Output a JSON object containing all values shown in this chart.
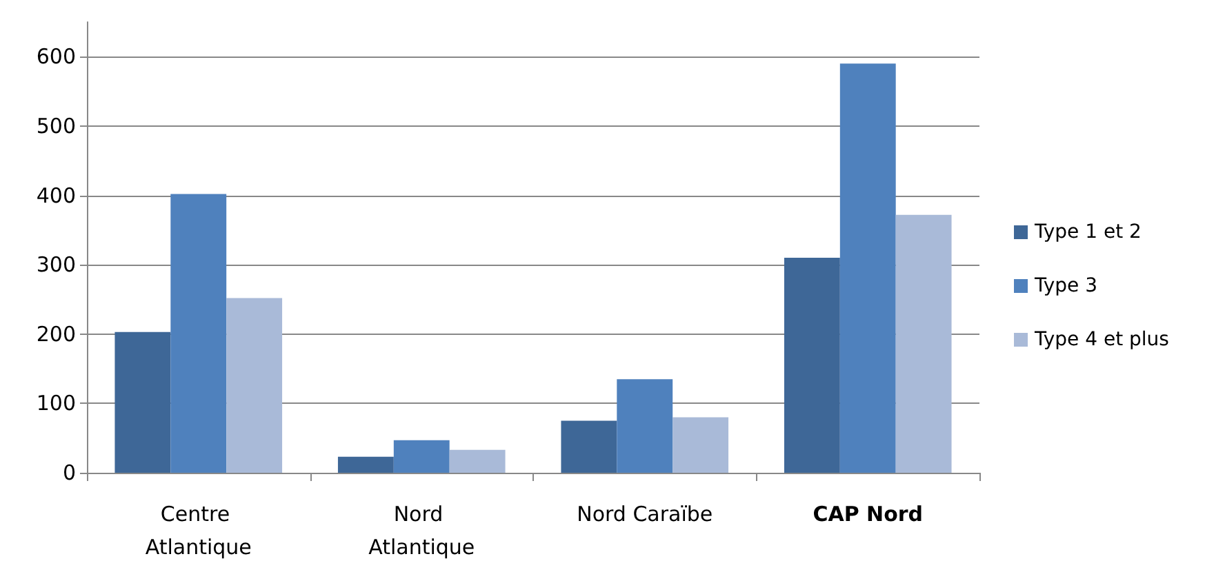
{
  "chart_data": {
    "type": "bar",
    "categories": [
      "Centre Atlantique",
      "Nord Atlantique",
      "Nord Caraïbe",
      "CAP Nord"
    ],
    "series": [
      {
        "name": "Type 1 et 2",
        "color": "#3e6797",
        "values": [
          203,
          23,
          75,
          310
        ]
      },
      {
        "name": "Type 3",
        "color": "#4f81bd",
        "values": [
          402,
          47,
          135,
          590
        ]
      },
      {
        "name": "Type 4 et plus",
        "color": "#a9bad8",
        "values": [
          252,
          33,
          80,
          372
        ]
      }
    ],
    "ylim": [
      0,
      650
    ],
    "yticks": [
      0,
      100,
      200,
      300,
      400,
      500,
      600
    ],
    "grid": "y",
    "legend": "right"
  }
}
